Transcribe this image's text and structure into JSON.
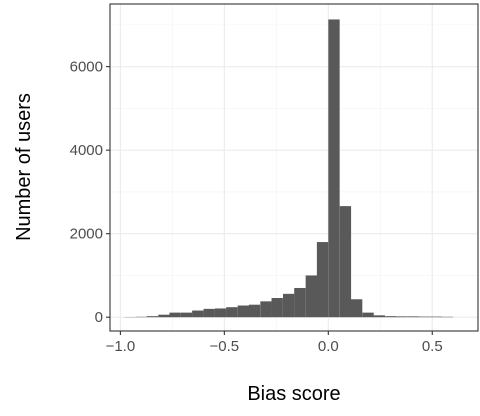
{
  "chart_data": {
    "type": "bar",
    "xlabel": "Bias score",
    "ylabel": "Number of users",
    "xlim": [
      -1.05,
      0.72
    ],
    "ylim": [
      -330,
      7500
    ],
    "x_ticks": [
      -1.0,
      -0.5,
      0.0,
      0.5
    ],
    "x_tick_labels": [
      "−1.0",
      "−0.5",
      "0.0",
      "0.5"
    ],
    "y_ticks": [
      0,
      2000,
      4000,
      6000
    ],
    "y_tick_labels": [
      "0",
      "2000",
      "4000",
      "6000"
    ],
    "grid": true,
    "bin_width": 0.0546,
    "bins": [
      {
        "x0": -0.982,
        "value": 5
      },
      {
        "x0": -0.927,
        "value": 10
      },
      {
        "x0": -0.873,
        "value": 25
      },
      {
        "x0": -0.818,
        "value": 60
      },
      {
        "x0": -0.764,
        "value": 110
      },
      {
        "x0": -0.709,
        "value": 110
      },
      {
        "x0": -0.655,
        "value": 160
      },
      {
        "x0": -0.6,
        "value": 200
      },
      {
        "x0": -0.545,
        "value": 210
      },
      {
        "x0": -0.491,
        "value": 240
      },
      {
        "x0": -0.436,
        "value": 280
      },
      {
        "x0": -0.382,
        "value": 300
      },
      {
        "x0": -0.327,
        "value": 380
      },
      {
        "x0": -0.273,
        "value": 460
      },
      {
        "x0": -0.218,
        "value": 560
      },
      {
        "x0": -0.164,
        "value": 700
      },
      {
        "x0": -0.109,
        "value": 1000
      },
      {
        "x0": -0.055,
        "value": 1800
      },
      {
        "x0": 0.0,
        "value": 7130
      },
      {
        "x0": 0.055,
        "value": 2660
      },
      {
        "x0": 0.109,
        "value": 430
      },
      {
        "x0": 0.164,
        "value": 110
      },
      {
        "x0": 0.218,
        "value": 45
      },
      {
        "x0": 0.273,
        "value": 25
      },
      {
        "x0": 0.327,
        "value": 20
      },
      {
        "x0": 0.382,
        "value": 20
      },
      {
        "x0": 0.436,
        "value": 15
      },
      {
        "x0": 0.491,
        "value": 15
      },
      {
        "x0": 0.545,
        "value": 10
      }
    ],
    "bar_color": "#595959"
  }
}
